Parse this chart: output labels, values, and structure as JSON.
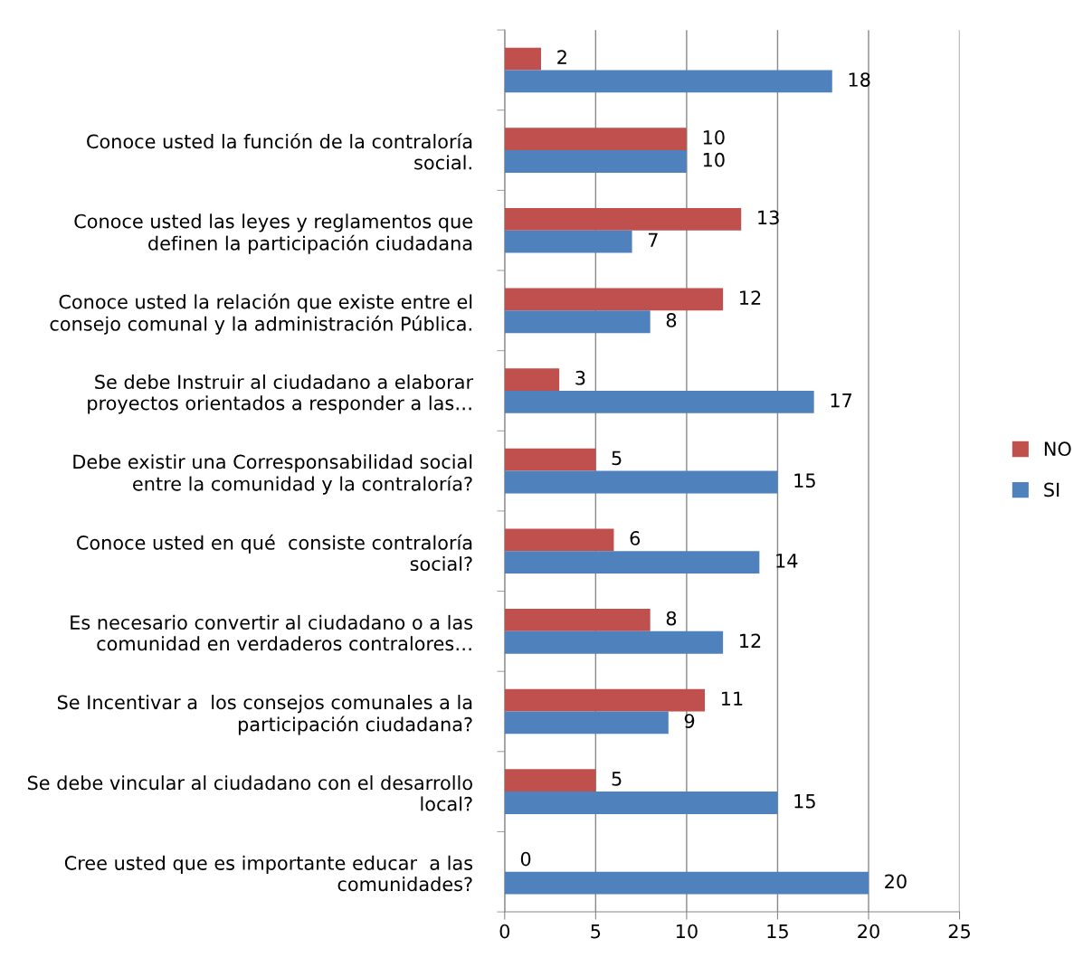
{
  "chart_data": {
    "type": "bar",
    "orientation": "horizontal",
    "categories": [
      null,
      "Conoce usted la función de la contraloría\nsocial.",
      "Conoce usted las leyes y reglamentos que\ndefinen la participación ciudadana",
      "Conoce usted la relación que existe entre el\nconsejo comunal y la administración Pública.",
      "Se debe Instruir al ciudadano a elaborar\nproyectos orientados a responder a las…",
      "Debe existir una Corresponsabilidad social\nentre la comunidad y la contraloría?",
      "Conoce usted en qué  consiste contraloría\nsocial?",
      "Es necesario convertir al ciudadano o a las\ncomunidad en verdaderos contralores…",
      "Se Incentivar a  los consejos comunales a la\nparticipación ciudadana?",
      "Se debe vincular al ciudadano con el desarrollo\nlocal?",
      "Cree usted que es importante educar  a las\ncomunidades?"
    ],
    "series": [
      {
        "name": "NO",
        "color": "#c0504d",
        "values": [
          2,
          10,
          13,
          12,
          3,
          5,
          6,
          8,
          11,
          5,
          0
        ]
      },
      {
        "name": "SI",
        "color": "#4f81bd",
        "values": [
          18,
          10,
          7,
          8,
          17,
          15,
          14,
          12,
          9,
          15,
          20
        ]
      }
    ],
    "xlim": [
      0,
      25
    ],
    "xticks": [
      0,
      5,
      10,
      15,
      20,
      25
    ],
    "grid": "x",
    "legend": "right",
    "data_labels": true
  }
}
